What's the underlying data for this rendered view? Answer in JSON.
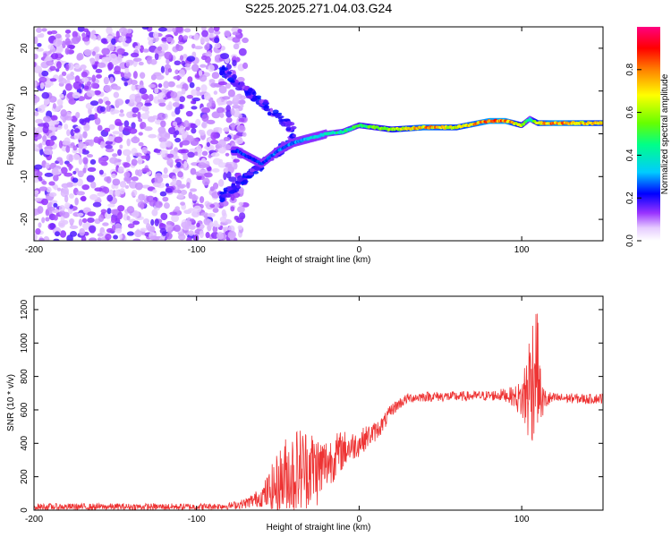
{
  "title": "S225.2025.271.04.03.G24",
  "chart_data": [
    {
      "type": "heatmap",
      "xlabel": "Height of straight line (km)",
      "ylabel": "Frequency (Hz)",
      "xlim": [
        -200,
        150
      ],
      "ylim": [
        -25,
        25
      ],
      "x_ticks": [
        -200,
        -100,
        0,
        100
      ],
      "y_ticks": [
        -20,
        -10,
        0,
        10,
        20
      ],
      "colorbar": {
        "label": "Normalized spectral amplitude",
        "range": [
          0,
          1
        ],
        "ticks": [
          "0.0",
          "0.2",
          "0.4",
          "0.6",
          "0.8"
        ],
        "tick_values": [
          0,
          0.2,
          0.4,
          0.6,
          0.8
        ],
        "stops": [
          "#ffffff",
          "#cc99ff",
          "#7700ee",
          "#0000ff",
          "#00d0ff",
          "#00ff60",
          "#ffff00",
          "#ff8000",
          "#ff0000",
          "#ff0080"
        ]
      },
      "ridge": {
        "name": "signal track",
        "x": [
          -75,
          -60,
          -50,
          -40,
          -30,
          -20,
          -10,
          0,
          10,
          20,
          40,
          60,
          80,
          90,
          100,
          105,
          110,
          120,
          140,
          150
        ],
        "y": [
          -4,
          -7,
          -4,
          -2,
          -1,
          0,
          0.5,
          2,
          1.5,
          1,
          1.5,
          1.5,
          3,
          3,
          2,
          3.5,
          2.5,
          2.5,
          2.5,
          2.5
        ],
        "amplitude": [
          0.25,
          0.25,
          0.3,
          0.3,
          0.35,
          0.4,
          0.45,
          0.5,
          0.55,
          0.6,
          0.8,
          0.7,
          0.85,
          0.85,
          0.6,
          0.4,
          0.7,
          0.85,
          0.75,
          0.7
        ]
      },
      "noise_region_x": [
        -200,
        -80
      ]
    },
    {
      "type": "line",
      "xlabel": "Height of straight line (km)",
      "ylabel": "SNR (10 * v/v)",
      "xlim": [
        -200,
        150
      ],
      "ylim": [
        0,
        1280
      ],
      "x_ticks": [
        -200,
        -100,
        0,
        100
      ],
      "y_ticks": [
        0,
        200,
        400,
        600,
        800,
        1000,
        1200
      ],
      "series": [
        {
          "name": "SNR",
          "color": "#ee3333",
          "x": [
            -200,
            -150,
            -100,
            -80,
            -70,
            -60,
            -50,
            -45,
            -40,
            -35,
            -30,
            -25,
            -20,
            -15,
            -10,
            -5,
            0,
            5,
            10,
            15,
            20,
            25,
            30,
            40,
            60,
            80,
            90,
            95,
            100,
            103,
            106,
            109,
            112,
            115,
            120,
            130,
            140,
            150
          ],
          "y": [
            20,
            20,
            20,
            25,
            40,
            80,
            150,
            200,
            220,
            250,
            260,
            240,
            280,
            320,
            360,
            380,
            400,
            440,
            470,
            520,
            600,
            640,
            670,
            680,
            680,
            685,
            690,
            680,
            660,
            700,
            780,
            900,
            650,
            660,
            670,
            670,
            665,
            670
          ],
          "spread": [
            20,
            20,
            20,
            20,
            30,
            60,
            200,
            250,
            280,
            260,
            240,
            220,
            160,
            140,
            120,
            90,
            80,
            70,
            60,
            50,
            40,
            35,
            30,
            30,
            30,
            30,
            40,
            60,
            120,
            300,
            400,
            400,
            120,
            60,
            30,
            30,
            30,
            30
          ]
        }
      ]
    }
  ]
}
